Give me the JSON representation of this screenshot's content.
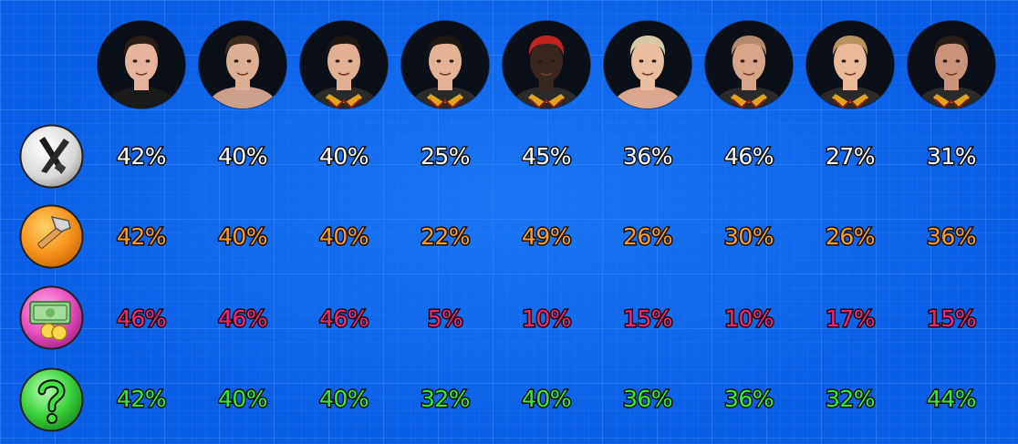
{
  "characters": [
    {
      "name": "character-1",
      "skin": "#e6b49c",
      "hair": "#2a1d16",
      "shirt": "#1a1a1a",
      "collar": false
    },
    {
      "name": "character-2",
      "skin": "#dcae94",
      "hair": "#3b2a1e",
      "shirt": "#caa08a",
      "collar": false
    },
    {
      "name": "character-3",
      "skin": "#e2b093",
      "hair": "#1f1712",
      "shirt": "#2a2a2a",
      "collar": true
    },
    {
      "name": "character-4",
      "skin": "#e4b396",
      "hair": "#1f1712",
      "shirt": "#2a2a2a",
      "collar": true
    },
    {
      "name": "character-5",
      "skin": "#3a2620",
      "hair": "#c2241c",
      "shirt": "#2a2a2a",
      "collar": true
    },
    {
      "name": "character-6",
      "skin": "#eabd9f",
      "hair": "#d8c9a6",
      "shirt": "#d9a88e",
      "collar": false
    },
    {
      "name": "character-7",
      "skin": "#d8a487",
      "hair": "#b58a6c",
      "shirt": "#2a2a2a",
      "collar": true
    },
    {
      "name": "character-8",
      "skin": "#e9b99a",
      "hair": "#b8935c",
      "shirt": "#2a2a2a",
      "collar": true
    },
    {
      "name": "character-9",
      "skin": "#c99479",
      "hair": "#2a1d16",
      "shirt": "#2a2a2a",
      "collar": true
    }
  ],
  "stats": [
    {
      "category": "tools",
      "icon": "tools-cross-icon",
      "color": "#ffffff",
      "values": [
        "42%",
        "40%",
        "40%",
        "25%",
        "45%",
        "36%",
        "46%",
        "27%",
        "31%"
      ]
    },
    {
      "category": "construction",
      "icon": "hammer-icon",
      "color": "#ff9a1c",
      "values": [
        "42%",
        "40%",
        "40%",
        "22%",
        "49%",
        "26%",
        "30%",
        "26%",
        "36%"
      ]
    },
    {
      "category": "money",
      "icon": "money-icon",
      "color": "#ff1f73",
      "values": [
        "46%",
        "46%",
        "46%",
        "5%",
        "10%",
        "15%",
        "10%",
        "17%",
        "15%"
      ]
    },
    {
      "category": "unknown",
      "icon": "question-mark-icon",
      "color": "#2cf02c",
      "values": [
        "42%",
        "40%",
        "40%",
        "32%",
        "40%",
        "36%",
        "36%",
        "32%",
        "44%"
      ]
    }
  ]
}
